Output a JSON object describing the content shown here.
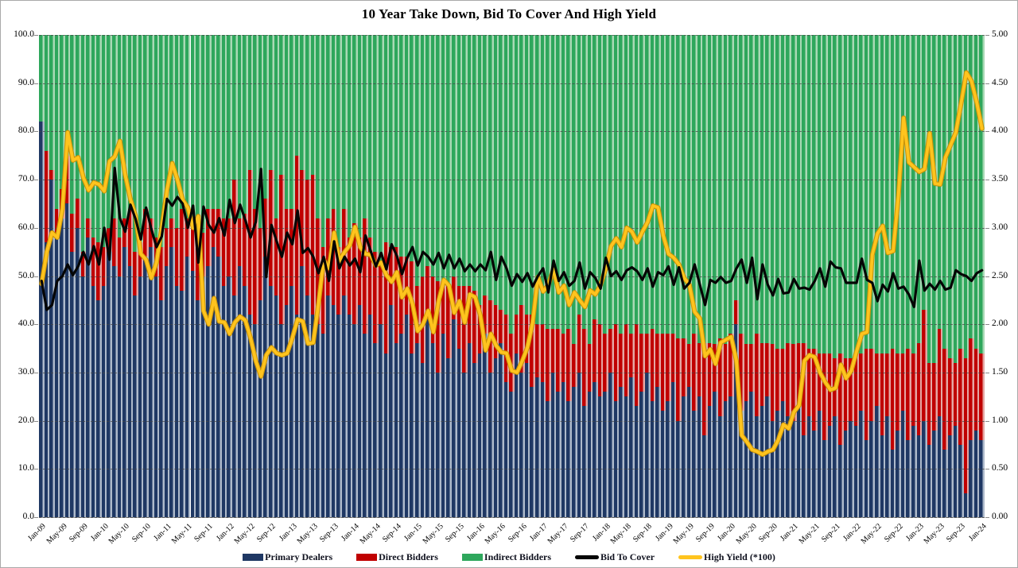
{
  "title": "10 Year Take Down, Bid To Cover And High Yield",
  "colors": {
    "primary_dealers": "#1F3864",
    "primary_dealers_light": "#AEBACB",
    "direct_bidders": "#C00000",
    "direct_bidders_light": "#E5A7A4",
    "indirect_bidders": "#2EA75C",
    "indirect_bidders_light": "#A9D9B5",
    "bid_to_cover": "#050505",
    "high_yield": "#FFC41E",
    "high_yield_edge": "#C8920A",
    "grid": "#464646"
  },
  "legend": [
    {
      "label": "Primary Dealers",
      "type": "bar",
      "color": "#1F3864"
    },
    {
      "label": "Direct Bidders",
      "type": "bar",
      "color": "#C00000"
    },
    {
      "label": "Indirect Bidders",
      "type": "bar",
      "color": "#2EA75C"
    },
    {
      "label": "Bid To Cover",
      "type": "line",
      "color": "#050505"
    },
    {
      "label": "High Yield (*100)",
      "type": "line",
      "color": "#FFC41E"
    }
  ],
  "axes": {
    "left_ticks": [
      "100.0",
      "90.0",
      "80.0",
      "70.0",
      "60.0",
      "50.0",
      "40.0",
      "30.0",
      "20.0",
      "10.0",
      "0.0"
    ],
    "right_ticks": [
      "5.00",
      "4.50",
      "4.00",
      "3.50",
      "3.00",
      "2.50",
      "2.00",
      "1.50",
      "1.00",
      "0.50",
      "0.00"
    ],
    "x_ticks": [
      "Jan-09",
      "May-09",
      "Sep-09",
      "Jan-10",
      "May-10",
      "Sep-10",
      "Jan-11",
      "May-11",
      "Sep-11",
      "Jan-12",
      "May-12",
      "Sep-12",
      "Jan-13",
      "May-13",
      "Sep-13",
      "Jan-14",
      "May-14",
      "Sep-14",
      "Jan-15",
      "May-15",
      "Sep-15",
      "Jan-16",
      "May-16",
      "Sep-16",
      "Jan-17",
      "May-17",
      "Sep-17",
      "Jan-18",
      "May-18",
      "Sep-18",
      "Jan-19",
      "May-19",
      "Sep-19",
      "Jan-20",
      "May-20",
      "Sep-20",
      "Jan-21",
      "May-21",
      "Sep-21",
      "Jan-22",
      "May-22",
      "Sep-22",
      "Jan-23",
      "May-23",
      "Sep-23",
      "Jan-24"
    ],
    "x_tick_every_n_months": 4
  },
  "chart_data": {
    "type": "bar",
    "subtype": "stacked-bars-with-overlay-lines",
    "x_range": "monthly, Jan-2009 through Jan-2024 (181 months)",
    "left_axis": {
      "min": 0,
      "max": 100,
      "step": 10,
      "unit": "% take down"
    },
    "right_axis": {
      "min": 0,
      "max": 5,
      "step": 0.5
    },
    "grid": "horizontal dashed",
    "legend_position": "bottom center",
    "series": [
      {
        "name": "Primary Dealers",
        "axis": "left",
        "render": "stacked-bar",
        "values": [
          82,
          57,
          70,
          58,
          62,
          65,
          55,
          60,
          50,
          58,
          48,
          45,
          48,
          55,
          52,
          50,
          56,
          52,
          46,
          50,
          54,
          56,
          50,
          45,
          52,
          56,
          48,
          47,
          54,
          51,
          45,
          50,
          52,
          56,
          54,
          48,
          50,
          46,
          52,
          48,
          42,
          40,
          45,
          54,
          48,
          46,
          40,
          44,
          48,
          42,
          52,
          46,
          42,
          40,
          38,
          46,
          44,
          42,
          46,
          42,
          40,
          44,
          38,
          42,
          36,
          40,
          34,
          44,
          36,
          38,
          42,
          34,
          36,
          32,
          42,
          36,
          30,
          38,
          33,
          41,
          35,
          30,
          36,
          32,
          34,
          38,
          30,
          33,
          36,
          28,
          26,
          34,
          30,
          32,
          27,
          29,
          28,
          24,
          30,
          26,
          28,
          24,
          27,
          30,
          23,
          26,
          28,
          25,
          26,
          30,
          24,
          27,
          25,
          29,
          23,
          26,
          30,
          24,
          27,
          22,
          24,
          28,
          20,
          25,
          27,
          22,
          25,
          17,
          23,
          26,
          21,
          24,
          25,
          40,
          22,
          24,
          26,
          21,
          23,
          25,
          20,
          22,
          24,
          21,
          20,
          23,
          17,
          21,
          18,
          22,
          16,
          19,
          21,
          15,
          18,
          20,
          19,
          22,
          16,
          20,
          23,
          17,
          21,
          14,
          18,
          22,
          16,
          19,
          17,
          20,
          15,
          18,
          21,
          14,
          17,
          19,
          15,
          5,
          16,
          18,
          16
        ]
      },
      {
        "name": "Direct Bidders",
        "axis": "left",
        "render": "stacked-bar",
        "values": [
          0,
          19,
          2,
          6,
          6,
          10,
          8,
          6,
          5,
          4,
          10,
          12,
          8,
          5,
          10,
          8,
          6,
          12,
          9,
          7,
          10,
          6,
          8,
          11,
          8,
          6,
          12,
          17,
          8,
          10,
          14,
          9,
          12,
          8,
          10,
          14,
          12,
          24,
          10,
          15,
          30,
          24,
          15,
          12,
          24,
          16,
          31,
          20,
          16,
          33,
          20,
          24,
          29,
          22,
          18,
          16,
          20,
          14,
          18,
          16,
          21,
          14,
          24,
          16,
          19,
          13,
          23,
          12,
          20,
          16,
          12,
          19,
          12,
          18,
          10,
          14,
          19,
          11,
          15,
          9,
          13,
          18,
          12,
          15,
          10,
          8,
          15,
          11,
          7,
          14,
          12,
          8,
          14,
          10,
          15,
          11,
          12,
          15,
          9,
          13,
          10,
          15,
          9,
          12,
          16,
          10,
          13,
          15,
          12,
          9,
          16,
          11,
          15,
          9,
          17,
          12,
          8,
          15,
          11,
          16,
          14,
          10,
          17,
          12,
          9,
          16,
          11,
          19,
          13,
          10,
          16,
          12,
          13,
          5,
          16,
          12,
          10,
          17,
          13,
          11,
          16,
          13,
          11,
          15,
          16,
          13,
          19,
          14,
          17,
          12,
          18,
          15,
          12,
          19,
          15,
          13,
          15,
          12,
          19,
          15,
          11,
          17,
          13,
          21,
          16,
          12,
          19,
          15,
          19,
          23,
          17,
          14,
          18,
          21,
          16,
          13,
          20,
          28,
          21,
          17,
          18
        ]
      },
      {
        "name": "Indirect Bidders",
        "axis": "left",
        "render": "stacked-bar",
        "values": [
          18,
          24,
          28,
          36,
          32,
          25,
          37,
          34,
          45,
          38,
          42,
          43,
          44,
          40,
          38,
          42,
          38,
          36,
          45,
          43,
          36,
          38,
          42,
          44,
          40,
          38,
          40,
          36,
          38,
          39,
          41,
          41,
          36,
          36,
          36,
          38,
          38,
          30,
          38,
          37,
          28,
          36,
          40,
          34,
          28,
          38,
          29,
          36,
          36,
          25,
          28,
          30,
          29,
          38,
          44,
          38,
          36,
          44,
          36,
          42,
          39,
          42,
          38,
          42,
          45,
          47,
          43,
          44,
          44,
          46,
          46,
          47,
          52,
          50,
          48,
          50,
          51,
          51,
          52,
          50,
          52,
          52,
          52,
          53,
          56,
          54,
          55,
          56,
          57,
          58,
          62,
          58,
          56,
          58,
          58,
          60,
          60,
          61,
          61,
          61,
          62,
          61,
          64,
          58,
          61,
          64,
          59,
          60,
          62,
          61,
          60,
          62,
          60,
          62,
          60,
          62,
          62,
          61,
          62,
          62,
          62,
          62,
          63,
          63,
          64,
          62,
          64,
          64,
          64,
          64,
          63,
          64,
          62,
          55,
          62,
          64,
          64,
          62,
          64,
          64,
          64,
          65,
          65,
          64,
          64,
          64,
          64,
          65,
          65,
          66,
          66,
          66,
          67,
          66,
          67,
          67,
          66,
          66,
          65,
          65,
          66,
          66,
          66,
          65,
          66,
          66,
          65,
          66,
          64,
          57,
          68,
          68,
          61,
          65,
          67,
          68,
          65,
          67,
          63,
          65,
          66
        ]
      },
      {
        "name": "Bid To Cover",
        "axis": "right",
        "render": "line",
        "values": [
          2.45,
          2.15,
          2.2,
          2.45,
          2.5,
          2.62,
          2.51,
          2.6,
          2.75,
          2.62,
          2.81,
          2.62,
          3.0,
          2.67,
          3.62,
          3.1,
          2.96,
          3.24,
          3.09,
          2.88,
          3.21,
          2.99,
          2.8,
          2.91,
          3.3,
          3.23,
          3.32,
          3.25,
          3.0,
          3.23,
          2.64,
          3.22,
          3.03,
          2.95,
          3.1,
          2.92,
          3.29,
          3.05,
          3.24,
          3.08,
          2.9,
          3.06,
          3.61,
          2.49,
          3.03,
          2.86,
          2.7,
          2.95,
          2.83,
          3.18,
          2.74,
          2.79,
          2.7,
          2.53,
          2.7,
          2.45,
          2.86,
          2.58,
          2.7,
          2.61,
          2.68,
          2.54,
          2.92,
          2.76,
          2.6,
          2.74,
          2.57,
          2.83,
          2.71,
          2.52,
          2.69,
          2.8,
          2.61,
          2.75,
          2.7,
          2.62,
          2.74,
          2.58,
          2.72,
          2.58,
          2.68,
          2.55,
          2.62,
          2.55,
          2.62,
          2.56,
          2.75,
          2.46,
          2.7,
          2.58,
          2.4,
          2.52,
          2.44,
          2.53,
          2.39,
          2.5,
          2.58,
          2.33,
          2.66,
          2.45,
          2.54,
          2.4,
          2.45,
          2.64,
          2.37,
          2.54,
          2.48,
          2.37,
          2.69,
          2.5,
          2.55,
          2.46,
          2.56,
          2.59,
          2.55,
          2.46,
          2.58,
          2.39,
          2.54,
          2.51,
          2.6,
          2.41,
          2.59,
          2.37,
          2.43,
          2.62,
          2.41,
          2.2,
          2.46,
          2.43,
          2.49,
          2.43,
          2.45,
          2.58,
          2.67,
          2.43,
          2.69,
          2.26,
          2.62,
          2.41,
          2.3,
          2.47,
          2.32,
          2.33,
          2.47,
          2.37,
          2.38,
          2.36,
          2.45,
          2.58,
          2.39,
          2.65,
          2.59,
          2.58,
          2.43,
          2.43,
          2.43,
          2.68,
          2.46,
          2.43,
          2.24,
          2.41,
          2.34,
          2.53,
          2.37,
          2.39,
          2.31,
          2.18,
          2.66,
          2.35,
          2.42,
          2.36,
          2.45,
          2.36,
          2.38,
          2.56,
          2.52,
          2.5,
          2.45,
          2.53,
          2.56
        ]
      },
      {
        "name": "High Yield (*100)",
        "axis": "right",
        "render": "line",
        "values": [
          2.42,
          2.75,
          2.95,
          2.9,
          3.2,
          3.99,
          3.7,
          3.73,
          3.52,
          3.39,
          3.47,
          3.45,
          3.38,
          3.69,
          3.74,
          3.9,
          3.55,
          3.3,
          3.12,
          2.73,
          2.67,
          2.48,
          2.64,
          3.0,
          3.39,
          3.67,
          3.5,
          3.29,
          3.21,
          3.0,
          3.12,
          2.14,
          2.0,
          2.27,
          2.03,
          2.02,
          1.9,
          2.02,
          2.08,
          2.04,
          1.86,
          1.62,
          1.46,
          1.68,
          1.76,
          1.7,
          1.68,
          1.7,
          1.86,
          2.05,
          2.03,
          1.8,
          1.81,
          2.21,
          2.67,
          2.58,
          2.95,
          2.66,
          2.75,
          2.82,
          3.01,
          2.8,
          2.73,
          2.72,
          2.61,
          2.64,
          2.51,
          2.44,
          2.54,
          2.28,
          2.37,
          2.21,
          1.93,
          2.0,
          2.14,
          1.92,
          2.24,
          2.46,
          2.4,
          2.12,
          2.24,
          2.02,
          2.31,
          2.28,
          2.09,
          1.73,
          1.9,
          1.78,
          1.71,
          1.7,
          1.52,
          1.5,
          1.62,
          1.76,
          2.02,
          2.49,
          2.34,
          2.41,
          2.57,
          2.33,
          2.4,
          2.2,
          2.33,
          2.25,
          2.18,
          2.35,
          2.31,
          2.41,
          2.58,
          2.81,
          2.89,
          2.8,
          3.0,
          2.96,
          2.85,
          2.96,
          3.06,
          3.23,
          3.21,
          2.92,
          2.73,
          2.69,
          2.62,
          2.48,
          2.41,
          2.13,
          2.06,
          1.67,
          1.74,
          1.59,
          1.81,
          1.84,
          1.87,
          1.62,
          0.85,
          0.78,
          0.7,
          0.68,
          0.65,
          0.68,
          0.7,
          0.8,
          0.96,
          0.92,
          1.09,
          1.16,
          1.62,
          1.68,
          1.66,
          1.5,
          1.4,
          1.32,
          1.34,
          1.58,
          1.44,
          1.52,
          1.72,
          1.9,
          1.92,
          2.72,
          2.94,
          3.02,
          2.74,
          2.76,
          3.33,
          4.14,
          3.68,
          3.63,
          3.58,
          3.61,
          3.98,
          3.46,
          3.45,
          3.73,
          3.86,
          3.99,
          4.29,
          4.61,
          4.52,
          4.3,
          4.03
        ]
      }
    ]
  }
}
